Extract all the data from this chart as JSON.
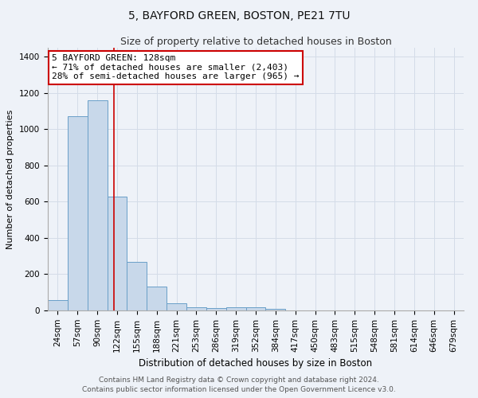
{
  "title": "5, BAYFORD GREEN, BOSTON, PE21 7TU",
  "subtitle": "Size of property relative to detached houses in Boston",
  "xlabel": "Distribution of detached houses by size in Boston",
  "ylabel": "Number of detached properties",
  "categories": [
    "24sqm",
    "57sqm",
    "90sqm",
    "122sqm",
    "155sqm",
    "188sqm",
    "221sqm",
    "253sqm",
    "286sqm",
    "319sqm",
    "352sqm",
    "384sqm",
    "417sqm",
    "450sqm",
    "483sqm",
    "515sqm",
    "548sqm",
    "581sqm",
    "614sqm",
    "646sqm",
    "679sqm"
  ],
  "values": [
    57,
    1070,
    1160,
    630,
    270,
    130,
    40,
    18,
    15,
    18,
    18,
    10,
    0,
    0,
    0,
    0,
    0,
    0,
    0,
    0,
    0
  ],
  "bar_color": "#c8d8ea",
  "bar_edge_color": "#6a9fc8",
  "bar_edge_width": 0.7,
  "grid_color": "#d4dce8",
  "bg_color": "#eef2f8",
  "red_line_x": 2.82,
  "red_line_color": "#cc0000",
  "annotation_text": "5 BAYFORD GREEN: 128sqm\n← 71% of detached houses are smaller (2,403)\n28% of semi-detached houses are larger (965) →",
  "annotation_box_color": "#ffffff",
  "annotation_border_color": "#cc0000",
  "ylim": [
    0,
    1450
  ],
  "yticks": [
    0,
    200,
    400,
    600,
    800,
    1000,
    1200,
    1400
  ],
  "footer_line1": "Contains HM Land Registry data © Crown copyright and database right 2024.",
  "footer_line2": "Contains public sector information licensed under the Open Government Licence v3.0.",
  "title_fontsize": 10,
  "subtitle_fontsize": 9,
  "annotation_fontsize": 8,
  "xlabel_fontsize": 8.5,
  "ylabel_fontsize": 8,
  "tick_fontsize": 7.5,
  "footer_fontsize": 6.5
}
